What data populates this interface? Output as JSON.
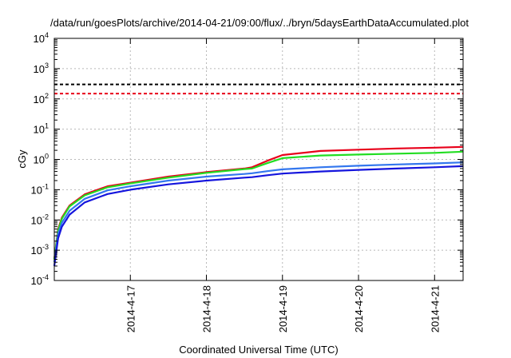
{
  "chart_data": {
    "type": "line",
    "title": "/data/run/goesPlots/archive/2014-04-21/09:00/flux/../bryn/5daysEarthDataAccumulated.plot",
    "xlabel": "Coordinated Universal Time (UTC)",
    "ylabel": "cGy",
    "y_scale": "log",
    "ylim": [
      0.0001,
      10000
    ],
    "xlim": [
      "2014-04-16 00:00",
      "2014-04-21 09:00"
    ],
    "grid": true,
    "x_ticks": [
      "2014-4-17",
      "2014-4-18",
      "2014-4-19",
      "2014-4-20",
      "2014-4-21"
    ],
    "y_ticks": [
      {
        "base": "10",
        "exp": "-4"
      },
      {
        "base": "10",
        "exp": "-3"
      },
      {
        "base": "10",
        "exp": "-2"
      },
      {
        "base": "10",
        "exp": "-1"
      },
      {
        "base": "10",
        "exp": "0"
      },
      {
        "base": "10",
        "exp": "1"
      },
      {
        "base": "10",
        "exp": "2"
      },
      {
        "base": "10",
        "exp": "3"
      },
      {
        "base": "10",
        "exp": "4"
      }
    ],
    "thresholds": [
      {
        "value": 300,
        "color": "#000000"
      },
      {
        "value": 150,
        "color": "#e8001a"
      }
    ],
    "series": [
      {
        "color": "#e8001a",
        "x": [
          "2014-04-16 00:00",
          "2014-04-16 01:12",
          "2014-04-16 02:24",
          "2014-04-16 04:48",
          "2014-04-16 09:36",
          "2014-04-16 16:48",
          "2014-04-17 00:00",
          "2014-04-17 12:00",
          "2014-04-18 00:00",
          "2014-04-18 12:00",
          "2014-04-18 14:24",
          "2014-04-18 19:12",
          "2014-04-19 00:00",
          "2014-04-19 12:00",
          "2014-04-20 00:00",
          "2014-04-20 12:00",
          "2014-04-21 00:00",
          "2014-04-21 09:00"
        ],
        "y": [
          0.0005,
          0.005,
          0.012,
          0.03,
          0.07,
          0.13,
          0.17,
          0.27,
          0.38,
          0.5,
          0.55,
          0.9,
          1.4,
          1.9,
          2.1,
          2.3,
          2.45,
          2.6
        ]
      },
      {
        "color": "#22dd22",
        "x": [
          "2014-04-16 00:00",
          "2014-04-16 01:12",
          "2014-04-16 02:24",
          "2014-04-16 04:48",
          "2014-04-16 09:36",
          "2014-04-16 16:48",
          "2014-04-17 00:00",
          "2014-04-17 12:00",
          "2014-04-18 00:00",
          "2014-04-18 12:00",
          "2014-04-18 14:24",
          "2014-04-18 19:12",
          "2014-04-19 00:00",
          "2014-04-19 12:00",
          "2014-04-20 00:00",
          "2014-04-20 12:00",
          "2014-04-21 00:00",
          "2014-04-21 09:00"
        ],
        "y": [
          0.0005,
          0.0045,
          0.011,
          0.028,
          0.065,
          0.12,
          0.16,
          0.25,
          0.36,
          0.48,
          0.5,
          0.75,
          1.1,
          1.35,
          1.45,
          1.55,
          1.65,
          1.8
        ]
      },
      {
        "color": "#3377ee",
        "x": [
          "2014-04-16 00:00",
          "2014-04-16 01:12",
          "2014-04-16 02:24",
          "2014-04-16 04:48",
          "2014-04-16 09:36",
          "2014-04-16 16:48",
          "2014-04-17 00:00",
          "2014-04-17 12:00",
          "2014-04-18 00:00",
          "2014-04-18 12:00",
          "2014-04-18 14:24",
          "2014-04-18 19:12",
          "2014-04-19 00:00",
          "2014-04-19 12:00",
          "2014-04-20 00:00",
          "2014-04-20 12:00",
          "2014-04-21 00:00",
          "2014-04-21 09:00"
        ],
        "y": [
          0.0004,
          0.0035,
          0.008,
          0.02,
          0.05,
          0.095,
          0.13,
          0.2,
          0.27,
          0.33,
          0.35,
          0.41,
          0.47,
          0.55,
          0.62,
          0.68,
          0.74,
          0.8
        ]
      },
      {
        "color": "#1515dd",
        "x": [
          "2014-04-16 00:00",
          "2014-04-16 01:12",
          "2014-04-16 02:24",
          "2014-04-16 04:48",
          "2014-04-16 09:36",
          "2014-04-16 16:48",
          "2014-04-17 00:00",
          "2014-04-17 12:00",
          "2014-04-18 00:00",
          "2014-04-18 12:00",
          "2014-04-18 14:24",
          "2014-04-18 19:12",
          "2014-04-19 00:00",
          "2014-04-19 12:00",
          "2014-04-20 00:00",
          "2014-04-20 12:00",
          "2014-04-21 00:00",
          "2014-04-21 09:00"
        ],
        "y": [
          0.0003,
          0.0025,
          0.006,
          0.015,
          0.038,
          0.072,
          0.1,
          0.15,
          0.2,
          0.25,
          0.26,
          0.3,
          0.34,
          0.4,
          0.45,
          0.5,
          0.55,
          0.6
        ]
      }
    ]
  }
}
